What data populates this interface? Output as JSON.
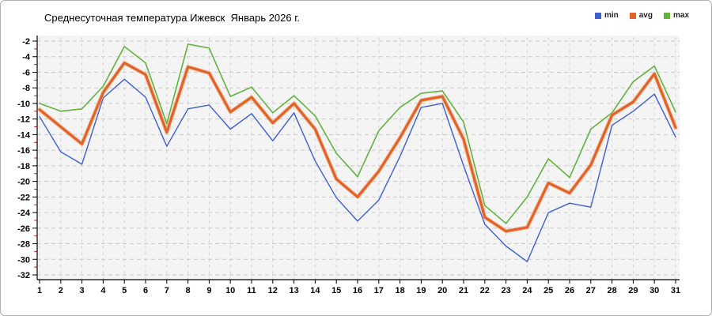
{
  "window": {
    "border_color": "#b0b0b0",
    "background": "#ffffff"
  },
  "chart_data": {
    "type": "line",
    "title": "Среднесуточная температура Ижевск  Январь 2026 г.",
    "xlabel": "",
    "ylabel": "",
    "x": [
      1,
      2,
      3,
      4,
      5,
      6,
      7,
      8,
      9,
      10,
      11,
      12,
      13,
      14,
      15,
      16,
      17,
      18,
      19,
      20,
      21,
      22,
      23,
      24,
      25,
      26,
      27,
      28,
      29,
      30,
      31
    ],
    "series": [
      {
        "name": "min",
        "color": "#3f5fce",
        "width": 1.4,
        "values": [
          -11.7,
          -16.2,
          -17.8,
          -9.3,
          -6.9,
          -9.2,
          -15.5,
          -10.7,
          -10.2,
          -13.3,
          -11.3,
          -14.8,
          -11.2,
          -17.4,
          -22.1,
          -25.1,
          -22.4,
          -16.8,
          -10.5,
          -10.0,
          -18.0,
          -25.5,
          -28.3,
          -30.3,
          -24.0,
          -22.8,
          -23.3,
          -12.8,
          -11.0,
          -8.8,
          -14.3
        ]
      },
      {
        "name": "avg",
        "color": "#e2622a",
        "halo": "#f2a269",
        "width": 3.2,
        "values": [
          -10.8,
          -13.0,
          -15.2,
          -8.6,
          -4.8,
          -6.3,
          -13.7,
          -5.3,
          -6.1,
          -11.1,
          -9.2,
          -12.5,
          -10.0,
          -13.3,
          -19.7,
          -22.0,
          -18.7,
          -14.4,
          -9.6,
          -9.1,
          -14.6,
          -24.6,
          -26.4,
          -25.9,
          -20.2,
          -21.5,
          -17.9,
          -11.5,
          -9.8,
          -6.2,
          -13.1
        ]
      },
      {
        "name": "max",
        "color": "#62b23e",
        "width": 1.6,
        "values": [
          -10.0,
          -11.0,
          -10.7,
          -7.8,
          -2.7,
          -4.8,
          -12.6,
          -2.4,
          -2.9,
          -9.1,
          -7.9,
          -11.2,
          -9.0,
          -11.6,
          -16.4,
          -19.4,
          -13.5,
          -10.5,
          -8.7,
          -8.4,
          -12.4,
          -23.1,
          -25.4,
          -22.0,
          -17.1,
          -19.5,
          -13.3,
          -11.2,
          -7.2,
          -5.2,
          -11.1
        ]
      }
    ],
    "ylim": [
      -32,
      -2
    ],
    "ytick_step": 2,
    "yticks": [
      -2,
      -4,
      -6,
      -8,
      -10,
      -12,
      -14,
      -16,
      -18,
      -20,
      -22,
      -24,
      -26,
      -28,
      -30,
      -32
    ],
    "grid": true,
    "legend_position": "top-right",
    "colors": {
      "plot_bg": "#f4f4f4",
      "hgrid": "#c9c9c9",
      "vgrid": "#d5d5d5",
      "axis": "#000000",
      "minor_tick": "#e02020",
      "tick_label": "#000000"
    }
  }
}
